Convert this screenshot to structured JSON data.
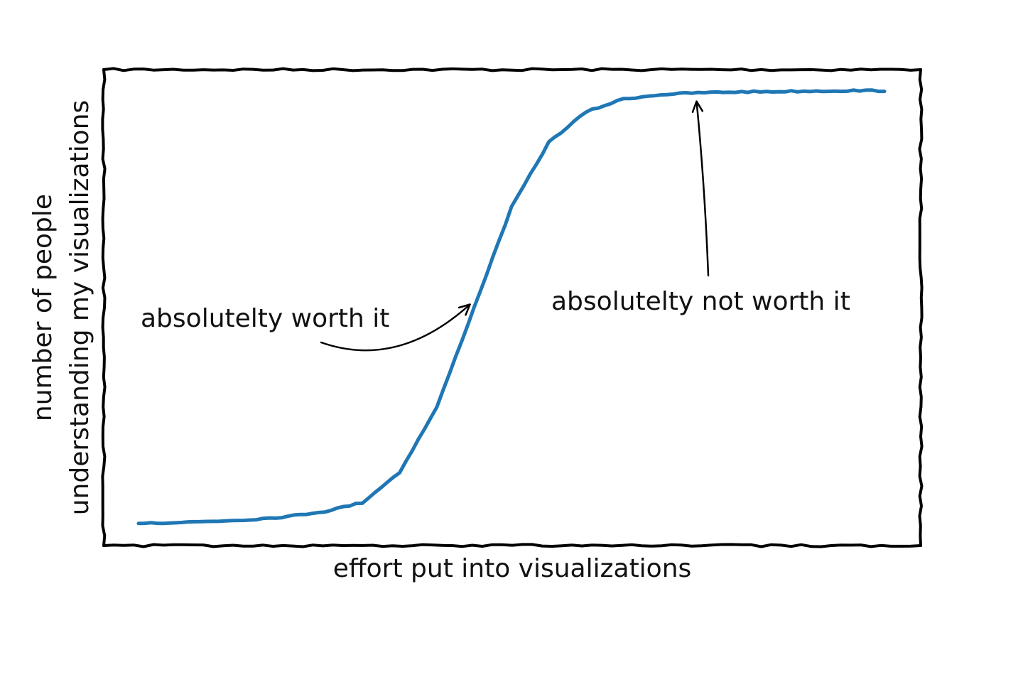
{
  "chart_data": {
    "type": "line",
    "style": "xkcd",
    "title": "",
    "xlabel": "effort put into visualizations",
    "ylabel_lines": [
      "number of people",
      "understanding my visualizations"
    ],
    "xlim": [
      0,
      10
    ],
    "ylim": [
      0,
      1
    ],
    "grid": false,
    "ticks": false,
    "x": [
      0,
      0.5,
      1,
      1.5,
      2,
      2.5,
      3,
      3.5,
      4,
      4.5,
      5,
      5.5,
      6,
      6.5,
      7,
      7.5,
      8,
      8.5,
      9,
      9.5,
      10
    ],
    "series": [
      {
        "color": "#1f77b4",
        "values": [
          0.003,
          0.004,
          0.007,
          0.011,
          0.018,
          0.03,
          0.05,
          0.12,
          0.27,
          0.5,
          0.73,
          0.88,
          0.95,
          0.98,
          0.99,
          0.994,
          0.996,
          0.997,
          0.998,
          0.999,
          0.999
        ]
      }
    ],
    "annotations": [
      {
        "text": "absolutelty worth it",
        "point": [
          4.5,
          0.5
        ]
      },
      {
        "text": "absolutelty not worth it",
        "point": [
          7.5,
          0.994
        ]
      }
    ],
    "frame_color": "#000000"
  }
}
